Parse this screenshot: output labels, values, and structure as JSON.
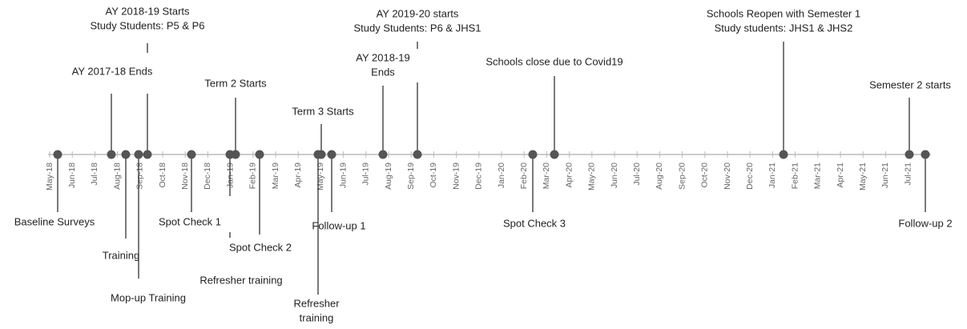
{
  "months": [
    "May-18",
    "Jun-18",
    "Jul-18",
    "Aug-18",
    "Sep-18",
    "Oct-18",
    "Nov-18",
    "Dec-18",
    "Jan-19",
    "Feb-19",
    "Mar-19",
    "Apr-19",
    "May-19",
    "Jun-19",
    "Jul-19",
    "Aug-19",
    "Sep-19",
    "Oct-19",
    "Nov-19",
    "Dec-19",
    "Jan-20",
    "Feb-20",
    "Mar-20",
    "Apr-20",
    "May-20",
    "Jun-20",
    "Jul-20",
    "Aug-20",
    "Sep-20",
    "Oct-20",
    "Nov-20",
    "Dec-20",
    "Jan-21",
    "Feb-21",
    "Mar-21",
    "Apr-21",
    "May-21",
    "Jun-21",
    "Jul-21"
  ],
  "events_above": [
    {
      "lines": [
        "AY 2017-18 Ends"
      ]
    },
    {
      "lines": [
        "AY 2018-19 Starts",
        "Study Students:  P5 & P6"
      ]
    },
    {
      "lines": [
        "Term 2 Starts"
      ]
    },
    {
      "lines": [
        "Term 3 Starts"
      ]
    },
    {
      "lines": [
        "AY 2018-19",
        "Ends"
      ]
    },
    {
      "lines": [
        "AY 2019-20 starts",
        "Study Students:  P6 & JHS1"
      ]
    },
    {
      "lines": [
        "Schools close due to Covid19"
      ]
    },
    {
      "lines": [
        "Schools Reopen with Semester 1",
        "Study students: JHS1 & JHS2"
      ]
    },
    {
      "lines": [
        "Semester 2 starts"
      ]
    }
  ],
  "events_below": [
    {
      "lines": [
        "Baseline Surveys"
      ]
    },
    {
      "lines": [
        "Training"
      ]
    },
    {
      "lines": [
        "Mop-up Training"
      ]
    },
    {
      "lines": [
        "Spot Check 1"
      ]
    },
    {
      "lines": [
        "Refresher training"
      ]
    },
    {
      "lines": [
        "Spot Check 2"
      ]
    },
    {
      "lines": [
        "Refresher",
        "training"
      ]
    },
    {
      "lines": [
        "Follow-up 1"
      ]
    },
    {
      "lines": [
        "Spot Check 3"
      ]
    },
    {
      "lines": [
        "Follow-up 2"
      ]
    }
  ]
}
